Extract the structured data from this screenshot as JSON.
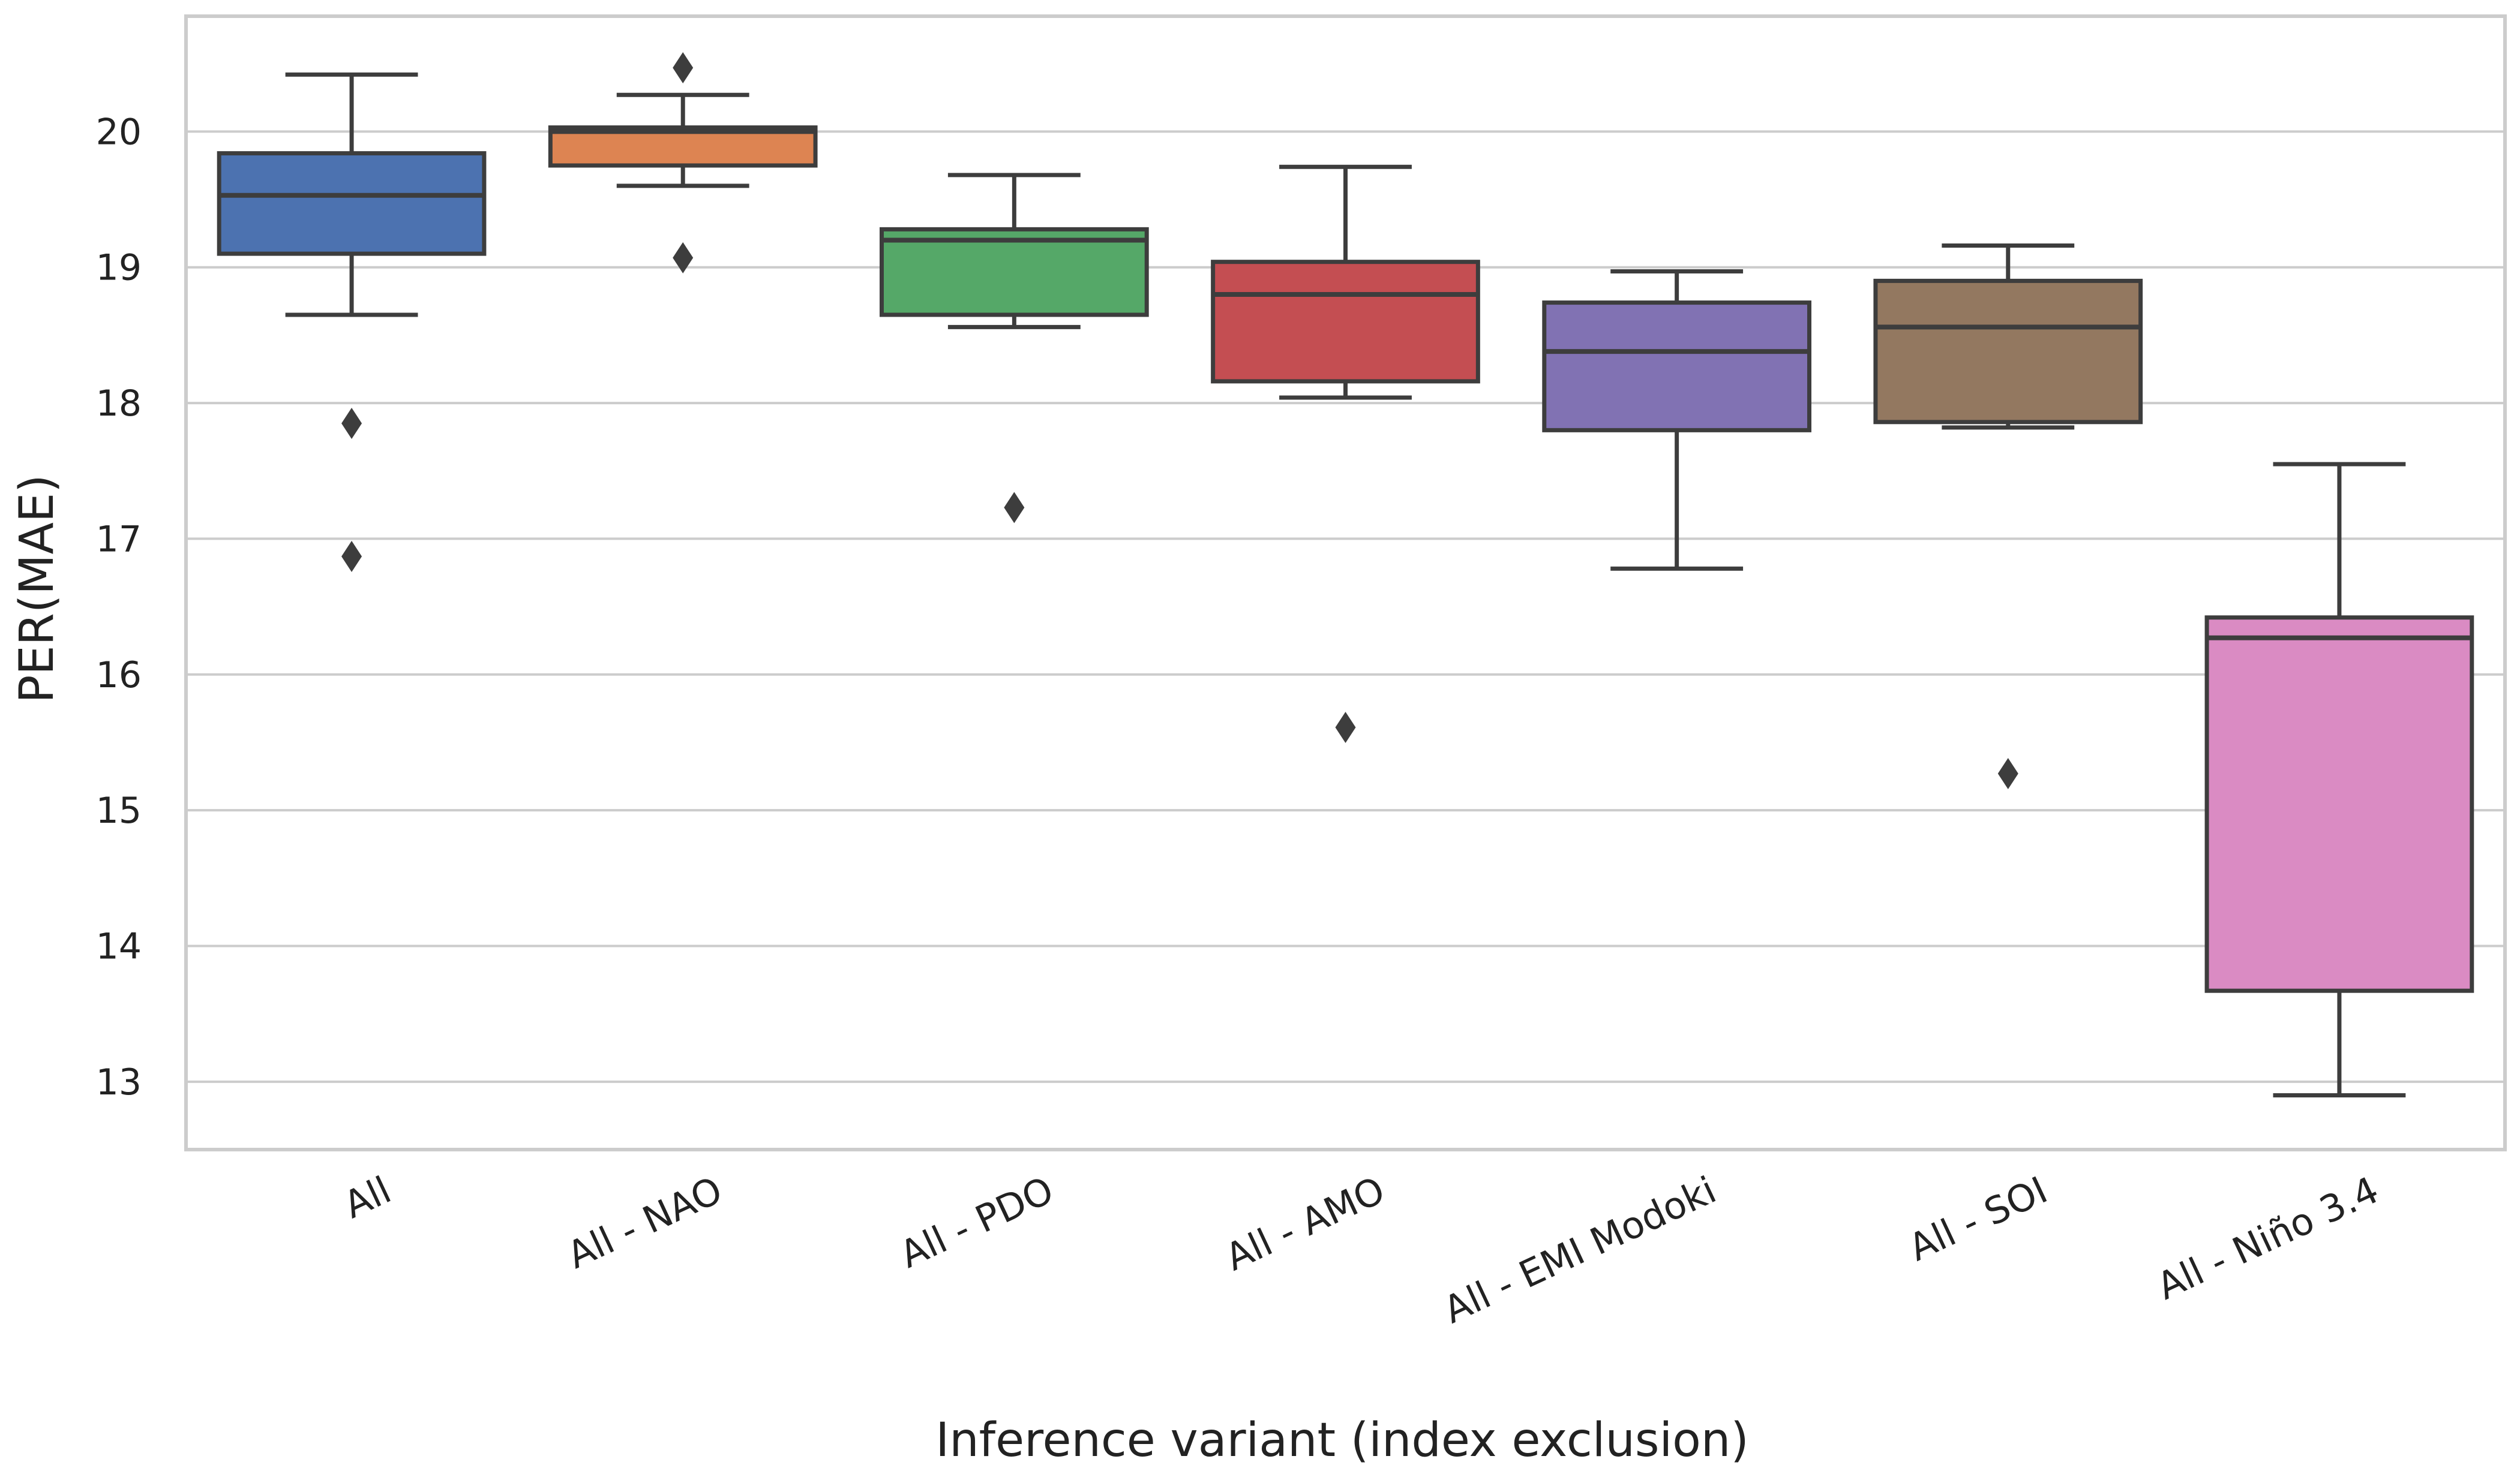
{
  "chart_data": {
    "type": "box",
    "title": "",
    "xlabel": "Inference variant (index exclusion)",
    "ylabel": "PER(MAE)",
    "ylim": [
      12.5,
      20.85
    ],
    "yticks": [
      13,
      14,
      15,
      16,
      17,
      18,
      19,
      20
    ],
    "grid": "horizontal",
    "categories": [
      "All",
      "All - NAO",
      "All - PDO",
      "All - AMO",
      "All - EMI Modoki",
      "All - SOI",
      "All - Niño 3.4"
    ],
    "boxes": [
      {
        "name": "All",
        "color": "#4c72b0",
        "whisker_low": 18.65,
        "q1": 19.1,
        "median": 19.53,
        "q3": 19.84,
        "whisker_high": 20.42,
        "outliers": [
          17.85,
          16.87
        ]
      },
      {
        "name": "All - NAO",
        "color": "#dd8452",
        "whisker_low": 19.6,
        "q1": 19.75,
        "median": 20.0,
        "q3": 20.03,
        "whisker_high": 20.27,
        "outliers": [
          20.47,
          19.07
        ]
      },
      {
        "name": "All - PDO",
        "color": "#55a868",
        "whisker_low": 18.56,
        "q1": 18.65,
        "median": 19.2,
        "q3": 19.28,
        "whisker_high": 19.68,
        "outliers": [
          17.23
        ]
      },
      {
        "name": "All - AMO",
        "color": "#c44e52",
        "whisker_low": 18.04,
        "q1": 18.16,
        "median": 18.8,
        "q3": 19.04,
        "whisker_high": 19.74,
        "outliers": [
          15.61
        ]
      },
      {
        "name": "All - EMI Modoki",
        "color": "#8172b3",
        "whisker_low": 16.78,
        "q1": 17.8,
        "median": 18.38,
        "q3": 18.74,
        "whisker_high": 18.97,
        "outliers": []
      },
      {
        "name": "All - SOI",
        "color": "#937860",
        "whisker_low": 17.82,
        "q1": 17.86,
        "median": 18.56,
        "q3": 18.9,
        "whisker_high": 19.16,
        "outliers": [
          15.27
        ]
      },
      {
        "name": "All - Niño 3.4",
        "color": "#da8bc3",
        "whisker_low": 12.9,
        "q1": 13.67,
        "median": 16.27,
        "q3": 16.42,
        "whisker_high": 17.55,
        "outliers": []
      }
    ]
  }
}
